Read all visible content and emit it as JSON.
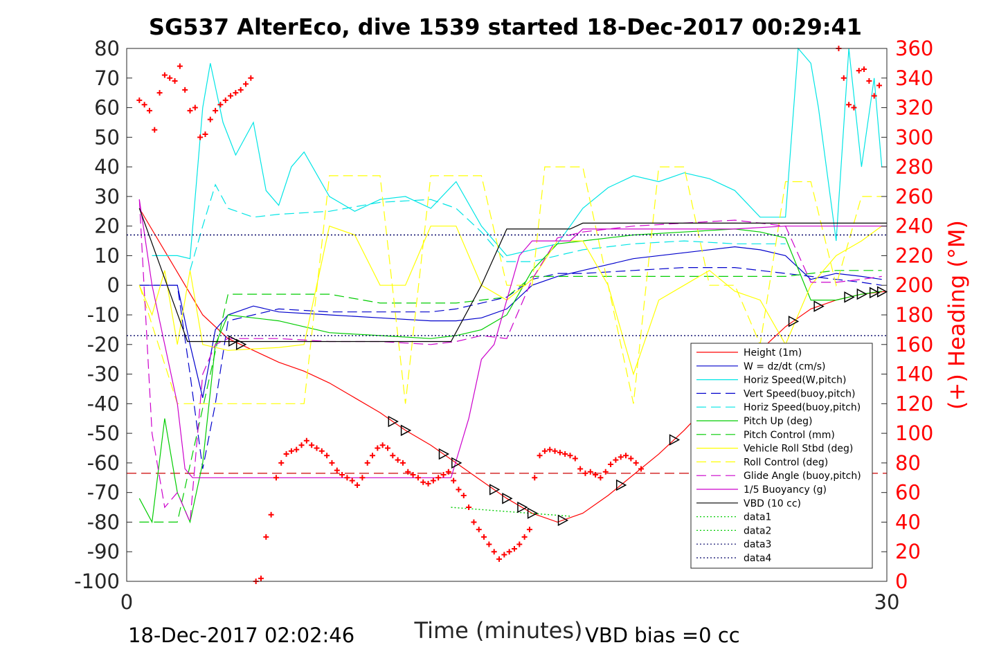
{
  "chart_data": {
    "type": "line",
    "title": "SG537 AlterEco, dive 1539 started 18-Dec-2017 00:29:41",
    "xlabel": "Time (minutes)",
    "ylabel": "",
    "y2label": "(+) Heading (°M)",
    "xlim": [
      0,
      30
    ],
    "ylim": [
      -100,
      80
    ],
    "y2lim": [
      0,
      360
    ],
    "x_ticks": [
      "0",
      "30"
    ],
    "y_ticks": [
      "80",
      "70",
      "60",
      "50",
      "40",
      "30",
      "20",
      "10",
      "0",
      "-10",
      "-20",
      "-30",
      "-40",
      "-50",
      "-60",
      "-70",
      "-80",
      "-90",
      "-100"
    ],
    "y2_ticks": [
      "360",
      "340",
      "320",
      "300",
      "280",
      "260",
      "240",
      "220",
      "200",
      "180",
      "160",
      "140",
      "120",
      "100",
      "80",
      "60",
      "40",
      "20",
      "0"
    ],
    "footer_left": "18-Dec-2017 02:02:46",
    "footer_right": "VBD bias =0 cc",
    "legend_position": "lower-right",
    "series": [
      {
        "name": "Height (1m)",
        "color": "#ff0000",
        "style": "solid",
        "x": [
          0.5,
          3,
          4,
          5,
          6,
          7,
          8,
          9,
          10,
          11,
          12,
          13,
          14,
          15,
          16,
          17,
          18,
          19,
          20,
          21,
          22,
          23,
          24,
          25,
          26,
          27,
          28,
          29,
          30
        ],
        "y": [
          26,
          -10,
          -18,
          -22,
          -26,
          -29,
          -33,
          -38,
          -43,
          -49,
          -54,
          -60,
          -66,
          -72,
          -77,
          -80,
          -77,
          -71,
          -64,
          -57,
          -49,
          -40,
          -31,
          -22,
          -14,
          -8,
          -5,
          -3,
          -2
        ]
      },
      {
        "name": "W = dz/dt (cm/s)",
        "color": "#0000cc",
        "style": "solid",
        "x": [
          0.5,
          1,
          2,
          2.5,
          3,
          3.5,
          4,
          5,
          6,
          8,
          10,
          12,
          13,
          14,
          15,
          16,
          17,
          18,
          19,
          20,
          22,
          24,
          25,
          26,
          27,
          28,
          29,
          29.8
        ],
        "y": [
          0,
          0,
          0,
          -20,
          -38,
          -15,
          -10,
          -7,
          -9,
          -10,
          -11,
          -12,
          -12,
          -11,
          -8,
          0,
          3,
          5,
          7,
          9,
          11,
          13,
          12,
          10,
          2,
          4,
          3,
          2
        ]
      },
      {
        "name": "Horiz Speed(W,pitch)",
        "color": "#00e5e5",
        "style": "solid",
        "x": [
          1,
          2,
          2.5,
          3,
          3.3,
          3.8,
          4.3,
          5,
          5.5,
          6,
          6.5,
          7,
          8,
          9,
          10,
          11,
          12,
          13,
          14,
          15,
          16,
          17,
          18,
          19,
          20,
          21,
          22,
          23,
          24,
          25,
          26,
          26.5,
          27,
          27.3,
          28,
          28.5,
          29,
          29.5,
          29.8
        ],
        "y": [
          10,
          10,
          9,
          60,
          75,
          55,
          44,
          55,
          32,
          27,
          40,
          45,
          30,
          25,
          29,
          30,
          26,
          35,
          20,
          10,
          12,
          14,
          26,
          33,
          37,
          35,
          38,
          36,
          32,
          23,
          23,
          80,
          75,
          60,
          15,
          80,
          40,
          70,
          40
        ]
      },
      {
        "name": "Vert Speed(buoy,pitch)",
        "color": "#0000cc",
        "style": "dashed",
        "x": [
          0.5,
          2,
          2.5,
          3,
          3.5,
          4,
          6,
          8,
          10,
          12,
          13,
          14,
          15,
          16,
          17,
          18,
          20,
          22,
          24,
          25,
          26,
          27,
          28,
          29,
          29.8
        ],
        "y": [
          0,
          0,
          -30,
          -62,
          -40,
          -12,
          -8,
          -9,
          -9,
          -9,
          -8,
          -6,
          -4,
          2,
          4,
          4,
          5,
          6,
          6,
          5,
          4,
          3,
          2,
          1,
          0
        ]
      },
      {
        "name": "Horiz Speed(buoy,pitch)",
        "color": "#00e5e5",
        "style": "dashed",
        "x": [
          2.5,
          3,
          3.5,
          4,
          5,
          6,
          8,
          10,
          12,
          13,
          14,
          15,
          16,
          17,
          18,
          20,
          22,
          24,
          25,
          26
        ],
        "y": [
          5,
          20,
          34,
          26,
          23,
          24,
          25,
          28,
          29,
          26,
          18,
          8,
          8,
          10,
          12,
          14,
          15,
          14,
          14,
          14
        ]
      },
      {
        "name": "Pitch Up (deg)",
        "color": "#00cc00",
        "style": "solid",
        "x": [
          0.5,
          1,
          1.5,
          2,
          2.5,
          3,
          3.5,
          4,
          6,
          8,
          10,
          12,
          13,
          14,
          15,
          16,
          17,
          18,
          20,
          22,
          24,
          25,
          26,
          27,
          28,
          29,
          29.8
        ],
        "y": [
          -72,
          -80,
          -45,
          -70,
          -80,
          -60,
          -20,
          -10,
          -12,
          -16,
          -17,
          -18,
          -17,
          -15,
          -10,
          5,
          14,
          15,
          17,
          18,
          19,
          18,
          16,
          -5,
          -5,
          -3,
          -2
        ]
      },
      {
        "name": "Pitch Control (mm)",
        "color": "#00cc00",
        "style": "dashed",
        "x": [
          0.5,
          2,
          4,
          6,
          8,
          10,
          12,
          13,
          14,
          15,
          16,
          17,
          18,
          20,
          22,
          24,
          26,
          28,
          29.8
        ],
        "y": [
          -80,
          -80,
          -3,
          -3,
          -3,
          -6,
          -6,
          -6,
          -5,
          -4,
          3,
          3,
          3,
          3,
          3,
          3,
          3,
          5,
          5
        ]
      },
      {
        "name": "Vehicle Roll Stbd (deg)",
        "color": "#ffff00",
        "style": "solid",
        "x": [
          0.5,
          1,
          1.5,
          2,
          2.5,
          3,
          4,
          6,
          7,
          8,
          9,
          10,
          11,
          12,
          13,
          14,
          15,
          16,
          17,
          18,
          19,
          20,
          21,
          22,
          23,
          24,
          25,
          26,
          27,
          28,
          29,
          29.8
        ],
        "y": [
          0,
          -10,
          5,
          -20,
          5,
          -20,
          -22,
          -21,
          -20,
          20,
          17,
          0,
          0,
          20,
          20,
          0,
          -5,
          2,
          15,
          15,
          0,
          -30,
          -5,
          0,
          5,
          -2,
          -5,
          -20,
          0,
          10,
          15,
          20
        ]
      },
      {
        "name": "Roll Control (deg)",
        "color": "#ffff00",
        "style": "dashed",
        "x": [
          0.5,
          2,
          3,
          4,
          6,
          7,
          8,
          9,
          10,
          11,
          12,
          13,
          14,
          15,
          16,
          16.5,
          17,
          18,
          19,
          20,
          21,
          22,
          23,
          24,
          25,
          26,
          27,
          28,
          29,
          29.8
        ],
        "y": [
          0,
          -40,
          -40,
          -40,
          -40,
          -40,
          37,
          37,
          37,
          -40,
          37,
          37,
          37,
          0,
          0,
          40,
          40,
          40,
          0,
          -40,
          40,
          40,
          0,
          0,
          -20,
          35,
          35,
          0,
          30,
          30
        ]
      },
      {
        "name": "Glide Angle (buoy,pitch)",
        "color": "#cc00cc",
        "style": "dashed",
        "x": [
          0.5,
          1,
          1.5,
          2,
          2.5,
          3,
          3.5,
          4,
          6,
          8,
          10,
          12,
          13,
          14,
          15,
          16,
          17,
          18,
          20,
          22,
          24,
          25,
          26,
          27,
          28,
          29,
          29.8
        ],
        "y": [
          29,
          -50,
          -75,
          -70,
          -80,
          -30,
          -20,
          -18,
          -18,
          -19,
          -19,
          -20,
          -19,
          -17,
          -18,
          2,
          16,
          18,
          20,
          21,
          22,
          21,
          20,
          1,
          1,
          2,
          3
        ]
      },
      {
        "name": "1/5 Buoyancy (g)",
        "color": "#cc00cc",
        "style": "solid",
        "x": [
          0.5,
          1,
          2,
          2.3,
          2.6,
          3,
          4,
          6,
          8,
          10,
          12,
          12.8,
          13.5,
          14,
          14.5,
          15,
          15.5,
          16,
          17,
          17.5,
          18,
          20,
          22,
          24,
          26,
          28,
          30
        ],
        "y": [
          29,
          0,
          -40,
          -62,
          -65,
          -65,
          -65,
          -65,
          -65,
          -65,
          -65,
          -65,
          -45,
          -25,
          -20,
          -5,
          10,
          15,
          15,
          15,
          19,
          19,
          19,
          19,
          20,
          20,
          20
        ]
      },
      {
        "name": "VBD (10 cc)",
        "color": "#000000",
        "style": "solid",
        "x": [
          0.5,
          2.4,
          3,
          4,
          6,
          8,
          10,
          12,
          12.8,
          14,
          15,
          15.5,
          16,
          17,
          17.5,
          18,
          20,
          22,
          24,
          26,
          28,
          30
        ],
        "y": [
          26,
          -19,
          -19,
          -19,
          -19,
          -19,
          -19,
          -19,
          -19,
          0,
          19,
          19,
          19,
          19,
          19,
          21,
          21,
          21,
          21,
          21,
          21,
          21
        ]
      },
      {
        "name": "data1",
        "color": "#00cc00",
        "style": "dotted",
        "x": [
          12.8,
          17.5
        ],
        "y": [
          -75,
          -78
        ]
      },
      {
        "name": "data2",
        "color": "#00cc00",
        "style": "dotted",
        "x": [],
        "y": []
      },
      {
        "name": "data3",
        "color": "#000066",
        "style": "dotted",
        "x": [
          0,
          30
        ],
        "y": [
          17,
          17
        ]
      },
      {
        "name": "data4",
        "color": "#000066",
        "style": "dotted",
        "x": [
          0,
          30
        ],
        "y": [
          -17,
          -17
        ]
      }
    ],
    "reference_line": {
      "color": "#cc0000",
      "style": "dashed",
      "y": -63.5
    },
    "heading": {
      "name": "(+) Heading",
      "color": "#ff0000",
      "marker": "+",
      "x": [
        0.5,
        0.7,
        0.9,
        1.1,
        1.3,
        1.5,
        1.7,
        1.9,
        2.1,
        2.3,
        2.5,
        2.7,
        2.9,
        3.1,
        3.3,
        3.5,
        3.7,
        3.9,
        4.1,
        4.3,
        4.5,
        4.7,
        4.9,
        5.1,
        5.3,
        5.5,
        5.7,
        5.9,
        6.1,
        6.3,
        6.5,
        6.7,
        6.9,
        7.1,
        7.3,
        7.5,
        7.7,
        7.9,
        8.1,
        8.3,
        8.5,
        8.7,
        8.9,
        9.1,
        9.3,
        9.5,
        9.7,
        9.9,
        10.1,
        10.3,
        10.5,
        10.7,
        10.9,
        11.1,
        11.3,
        11.5,
        11.7,
        11.9,
        12.1,
        12.3,
        12.5,
        12.7,
        12.9,
        13.1,
        13.3,
        13.5,
        13.7,
        13.9,
        14.1,
        14.3,
        14.5,
        14.7,
        14.9,
        15.1,
        15.3,
        15.5,
        15.7,
        15.9,
        16.1,
        16.3,
        16.5,
        16.7,
        16.9,
        17.1,
        17.3,
        17.5,
        17.7,
        17.9,
        18.1,
        18.3,
        18.5,
        18.7,
        18.9,
        19.1,
        19.3,
        19.5,
        19.7,
        19.9,
        20.1,
        20.3,
        28.1,
        28.3,
        28.5,
        28.7,
        28.9,
        29.1,
        29.3,
        29.5,
        29.7
      ],
      "y": [
        325,
        322,
        318,
        305,
        330,
        342,
        340,
        338,
        348,
        332,
        318,
        320,
        300,
        302,
        312,
        318,
        322,
        325,
        328,
        330,
        332,
        336,
        340,
        0,
        2,
        30,
        45,
        70,
        80,
        86,
        88,
        89,
        92,
        95,
        92,
        90,
        88,
        85,
        80,
        75,
        72,
        70,
        68,
        65,
        70,
        80,
        85,
        90,
        92,
        90,
        85,
        82,
        80,
        74,
        72,
        70,
        67,
        66,
        68,
        70,
        72,
        74,
        68,
        62,
        58,
        50,
        40,
        35,
        30,
        25,
        20,
        15,
        18,
        20,
        22,
        25,
        30,
        35,
        70,
        85,
        88,
        89,
        88,
        87,
        86,
        85,
        83,
        76,
        73,
        74,
        72,
        70,
        74,
        79,
        82,
        84,
        85,
        83,
        80,
        76,
        360,
        340,
        322,
        320,
        345,
        346,
        338,
        328,
        335
      ]
    }
  }
}
